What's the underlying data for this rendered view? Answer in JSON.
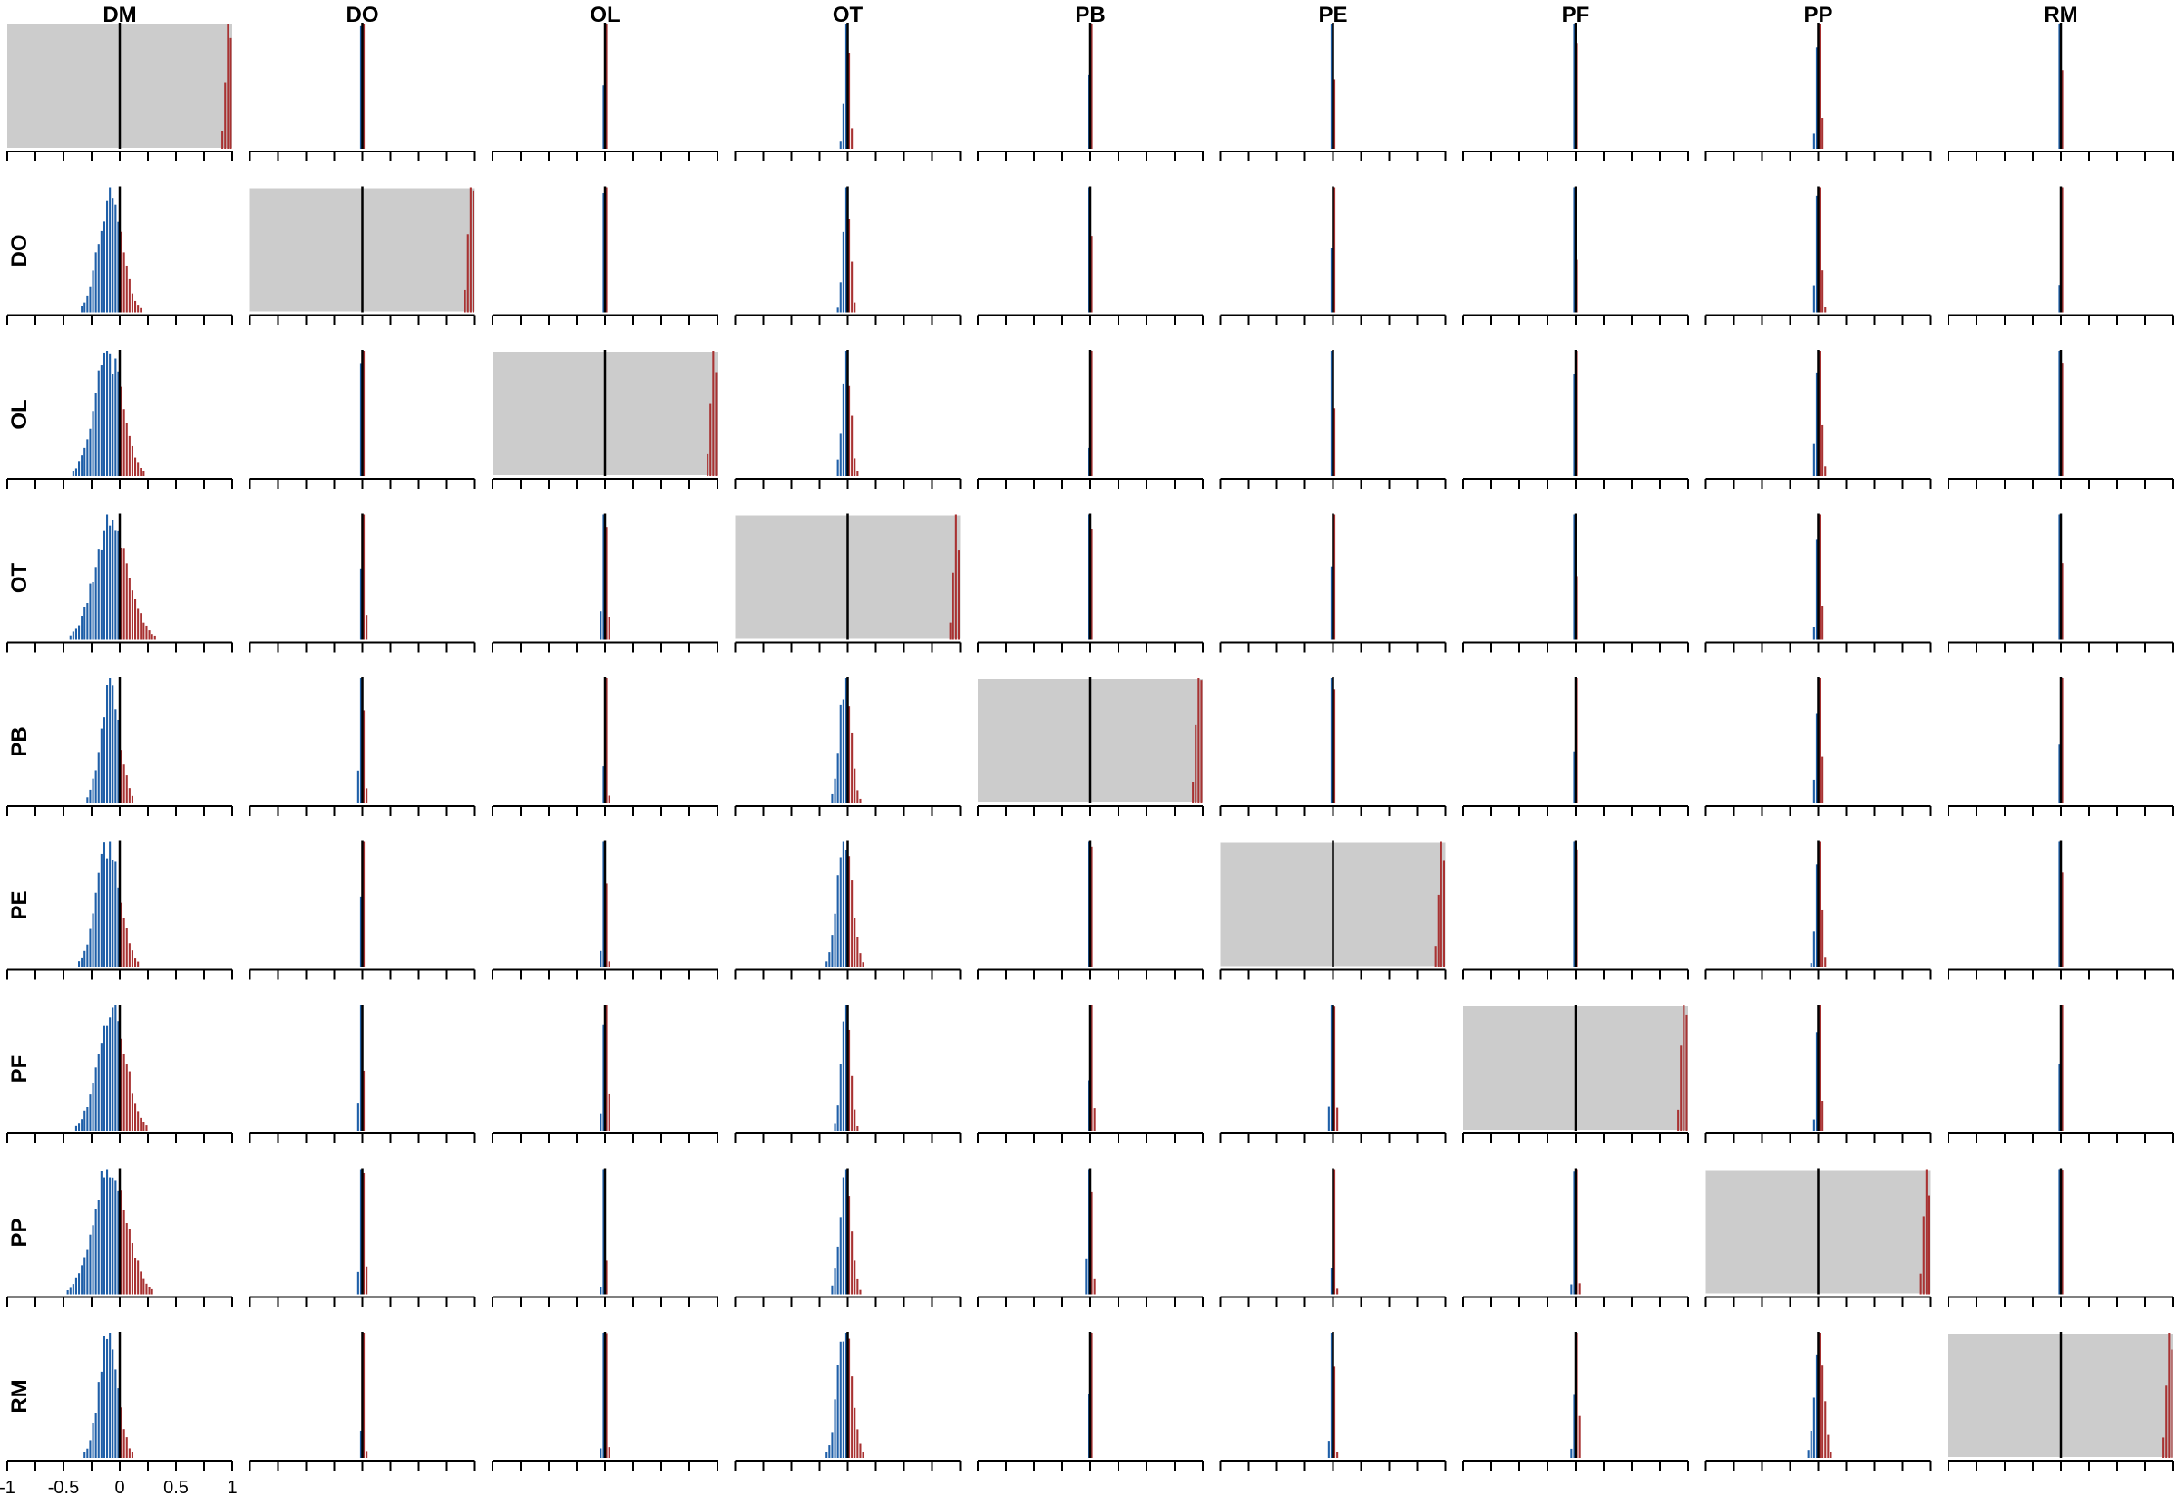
{
  "chart_data": {
    "type": "bar",
    "variables": [
      "DM",
      "DO",
      "OL",
      "OT",
      "PB",
      "PE",
      "PF",
      "PP",
      "RM"
    ],
    "xlim": [
      -1,
      1
    ],
    "x_ticks": [
      -1,
      -0.75,
      -0.5,
      -0.25,
      0,
      0.25,
      0.5,
      0.75,
      1
    ],
    "x_tick_labels": [
      {
        "value": -1,
        "label": "-1"
      },
      {
        "value": -0.5,
        "label": "-0.5"
      },
      {
        "value": 0,
        "label": "0"
      },
      {
        "value": 0.5,
        "label": "0.5"
      },
      {
        "value": 1,
        "label": "1"
      }
    ],
    "reference_line_x": 0,
    "diagonal_background": "#cccccc",
    "colors": {
      "negative": "#1f5fa8",
      "positive": "#a83232",
      "axis": "#000000"
    }
  }
}
